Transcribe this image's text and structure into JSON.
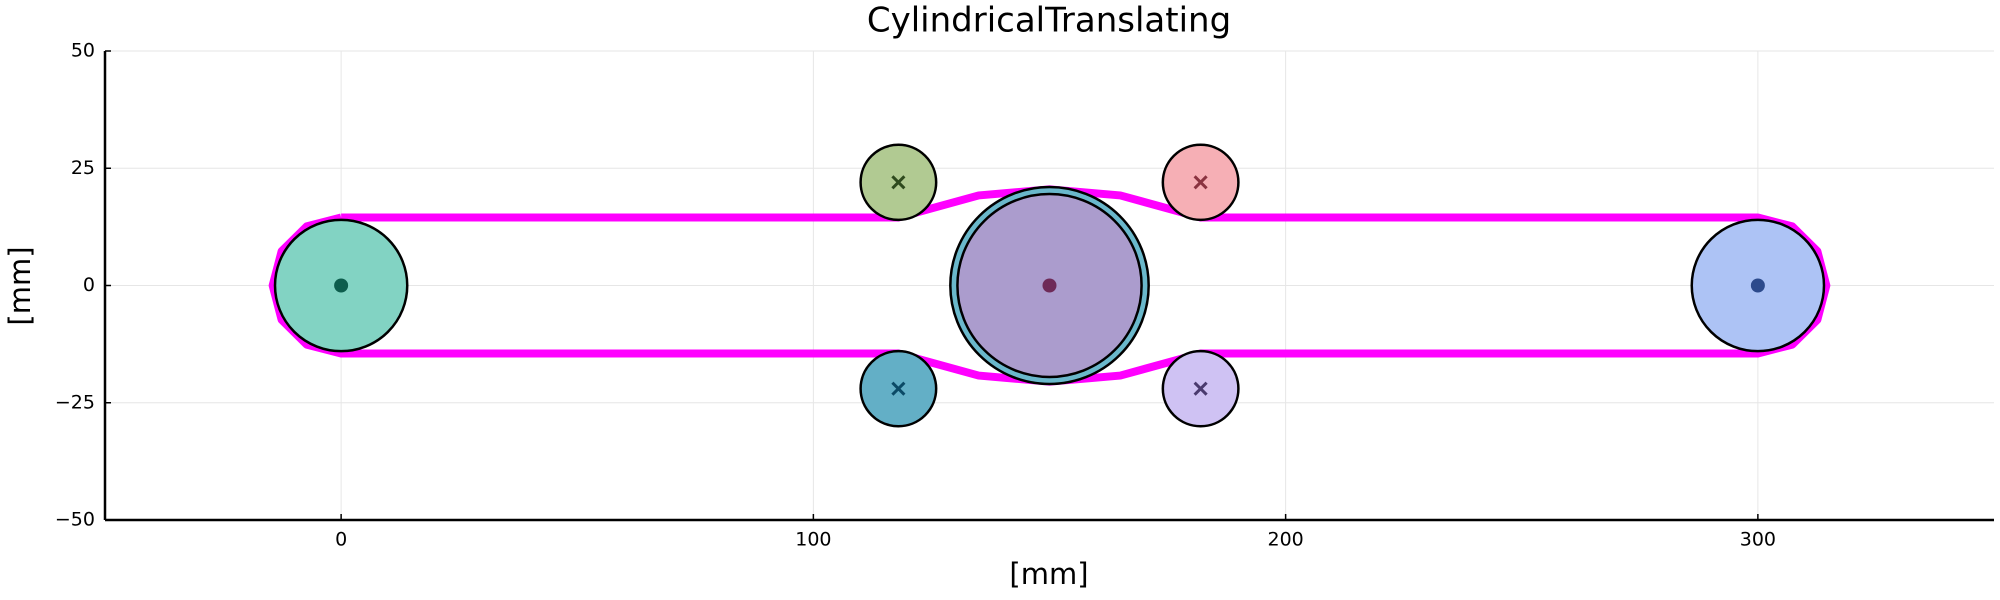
{
  "chart_data": {
    "type": "pulley",
    "title": "CylindricalTranslating",
    "xlabel": "[mm]",
    "ylabel": "[mm]",
    "xlim": [
      -50,
      350
    ],
    "ylim": [
      -50,
      50
    ],
    "xticks": [
      0,
      100,
      200,
      300
    ],
    "yticks": [
      {
        "value": -50,
        "label": "−50"
      },
      {
        "value": -25,
        "label": "−25"
      },
      0,
      25,
      50
    ],
    "grid": true,
    "belt": {
      "color": "#ff00ff",
      "x": [
        0,
        118,
        135,
        150,
        165,
        182,
        300,
        307.3,
        312.6,
        314.5,
        312.6,
        307.3,
        300,
        182,
        165,
        150,
        135,
        118,
        0,
        -7.3,
        -12.6,
        -14.5,
        -12.6,
        -7.3,
        0
      ],
      "y": [
        14.5,
        14.5,
        19.2,
        20.5,
        19.2,
        14.5,
        14.5,
        12.6,
        7.3,
        0,
        -7.3,
        -12.6,
        -14.5,
        -14.5,
        -19.2,
        -20.5,
        -19.2,
        -14.5,
        -14.5,
        -12.6,
        -7.3,
        0,
        7.3,
        12.6,
        14.5
      ]
    },
    "circles": [
      {
        "x": 0,
        "y": 0,
        "r": 14,
        "color": "#82d3c3",
        "marker": "dot",
        "marker_color": "#0d5d4d"
      },
      {
        "x": 150,
        "y": 0,
        "r": 21,
        "color": "#6ab8cb"
      },
      {
        "x": 150,
        "y": 0,
        "r": 19.5,
        "color": "#ab9ccd",
        "marker": "dot",
        "marker_color": "#6e2a58"
      },
      {
        "x": 300,
        "y": 0,
        "r": 14,
        "color": "#adc3f5",
        "marker": "dot",
        "marker_color": "#2c4a8c"
      },
      {
        "x": 118,
        "y": 22,
        "r": 8,
        "color": "#b1ca92",
        "marker": "x",
        "marker_color": "#2f4a1e"
      },
      {
        "x": 182,
        "y": 22,
        "r": 8,
        "color": "#f6afb5",
        "marker": "x",
        "marker_color": "#8a3340"
      },
      {
        "x": 118,
        "y": -22,
        "r": 8,
        "color": "#63afc6",
        "marker": "x",
        "marker_color": "#0b4a66"
      },
      {
        "x": 182,
        "y": -22,
        "r": 8,
        "color": "#cfc2f3",
        "marker": "x",
        "marker_color": "#4a3a6e"
      }
    ]
  }
}
